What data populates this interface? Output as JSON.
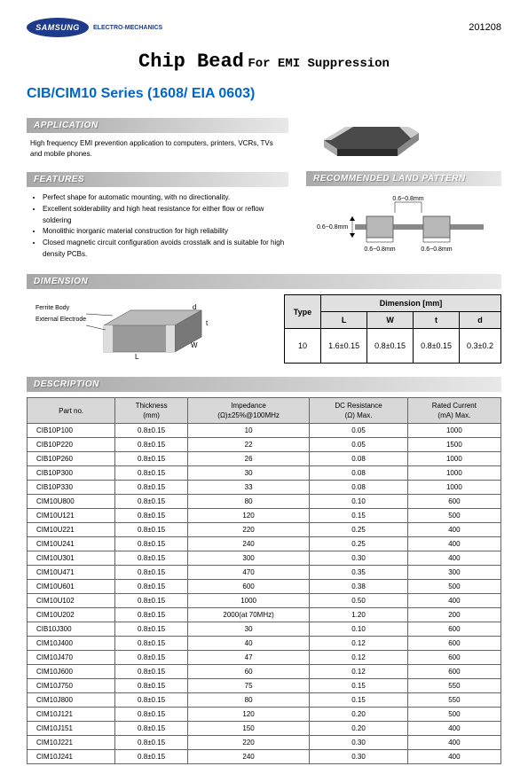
{
  "header": {
    "logo_name": "SAMSUNG",
    "logo_sub": "ELECTRO-MECHANICS",
    "doc_number": "201208"
  },
  "title": {
    "main": "Chip Bead",
    "sub": "For EMI Suppression"
  },
  "series": "CIB/CIM10 Series (1608/ EIA 0603)",
  "sections": {
    "application": "APPLICATION",
    "features": "FEATURES",
    "land_pattern": "RECOMMENDED LAND PATTERN",
    "dimension": "DIMENSION",
    "description": "DESCRIPTION"
  },
  "application_text": "High frequency EMI prevention application to computers, printers, VCRs, TVs and mobile phones.",
  "features": [
    "Perfect shape for automatic mounting, with no directionality.",
    "Excellent solderability and high heat resistance for either flow or reflow soldering",
    "Monolithic inorganic material construction for high reliability",
    "Closed magnetic circuit configuration avoids crosstalk and is suitable for high density PCBs."
  ],
  "land_pattern": {
    "dim_top": "0.6~0.8mm",
    "dim_left": "0.6~0.8mm",
    "dim_b1": "0.6~0.8mm",
    "dim_b2": "0.6~0.8mm"
  },
  "dimension_diagram": {
    "label1": "Ferrite Body",
    "label2": "External Electrode"
  },
  "dimension_table": {
    "header_type": "Type",
    "header_dim": "Dimension [mm]",
    "cols": [
      "L",
      "W",
      "t",
      "d"
    ],
    "type_val": "10",
    "vals": [
      "1.6±0.15",
      "0.8±0.15",
      "0.8±0.15",
      "0.3±0.2"
    ]
  },
  "description_table": {
    "headers": {
      "part": "Part no.",
      "thickness": "Thickness",
      "thickness_unit": "(mm)",
      "impedance": "Impedance",
      "impedance_unit": "(Ω)±25%@100MHz",
      "dc": "DC Resistance",
      "dc_unit": "(Ω) Max.",
      "current": "Rated Current",
      "current_unit": "(mA) Max."
    },
    "rows": [
      {
        "part": "CIB10P100",
        "th": "0.8±0.15",
        "imp": "10",
        "dc": "0.05",
        "cur": "1000"
      },
      {
        "part": "CIB10P220",
        "th": "0.8±0.15",
        "imp": "22",
        "dc": "0.05",
        "cur": "1500"
      },
      {
        "part": "CIB10P260",
        "th": "0.8±0.15",
        "imp": "26",
        "dc": "0.08",
        "cur": "1000"
      },
      {
        "part": "CIB10P300",
        "th": "0.8±0.15",
        "imp": "30",
        "dc": "0.08",
        "cur": "1000"
      },
      {
        "part": "CIB10P330",
        "th": "0.8±0.15",
        "imp": "33",
        "dc": "0.08",
        "cur": "1000"
      },
      {
        "part": "CIM10U800",
        "th": "0.8±0.15",
        "imp": "80",
        "dc": "0.10",
        "cur": "600"
      },
      {
        "part": "CIM10U121",
        "th": "0.8±0.15",
        "imp": "120",
        "dc": "0.15",
        "cur": "500"
      },
      {
        "part": "CIM10U221",
        "th": "0.8±0.15",
        "imp": "220",
        "dc": "0.25",
        "cur": "400"
      },
      {
        "part": "CIM10U241",
        "th": "0.8±0.15",
        "imp": "240",
        "dc": "0.25",
        "cur": "400"
      },
      {
        "part": "CIM10U301",
        "th": "0.8±0.15",
        "imp": "300",
        "dc": "0.30",
        "cur": "400"
      },
      {
        "part": "CIM10U471",
        "th": "0.8±0.15",
        "imp": "470",
        "dc": "0.35",
        "cur": "300"
      },
      {
        "part": "CIM10U601",
        "th": "0.8±0.15",
        "imp": "600",
        "dc": "0.38",
        "cur": "500"
      },
      {
        "part": "CIM10U102",
        "th": "0.8±0.15",
        "imp": "1000",
        "dc": "0.50",
        "cur": "400"
      },
      {
        "part": "CIM10U202",
        "th": "0.8±0.15",
        "imp": "2000(at 70MHz)",
        "dc": "1.20",
        "cur": "200"
      },
      {
        "part": "CIB10J300",
        "th": "0.8±0.15",
        "imp": "30",
        "dc": "0.10",
        "cur": "600"
      },
      {
        "part": "CIM10J400",
        "th": "0.8±0.15",
        "imp": "40",
        "dc": "0.12",
        "cur": "600"
      },
      {
        "part": "CIM10J470",
        "th": "0.8±0.15",
        "imp": "47",
        "dc": "0.12",
        "cur": "600"
      },
      {
        "part": "CIM10J600",
        "th": "0.8±0.15",
        "imp": "60",
        "dc": "0.12",
        "cur": "600"
      },
      {
        "part": "CIM10J750",
        "th": "0.8±0.15",
        "imp": "75",
        "dc": "0.15",
        "cur": "550"
      },
      {
        "part": "CIM10J800",
        "th": "0.8±0.15",
        "imp": "80",
        "dc": "0.15",
        "cur": "550"
      },
      {
        "part": "CIM10J121",
        "th": "0.8±0.15",
        "imp": "120",
        "dc": "0.20",
        "cur": "500"
      },
      {
        "part": "CIM10J151",
        "th": "0.8±0.15",
        "imp": "150",
        "dc": "0.20",
        "cur": "400"
      },
      {
        "part": "CIM10J221",
        "th": "0.8±0.15",
        "imp": "220",
        "dc": "0.30",
        "cur": "400"
      },
      {
        "part": "CIM10J241",
        "th": "0.8±0.15",
        "imp": "240",
        "dc": "0.30",
        "cur": "400"
      }
    ]
  }
}
